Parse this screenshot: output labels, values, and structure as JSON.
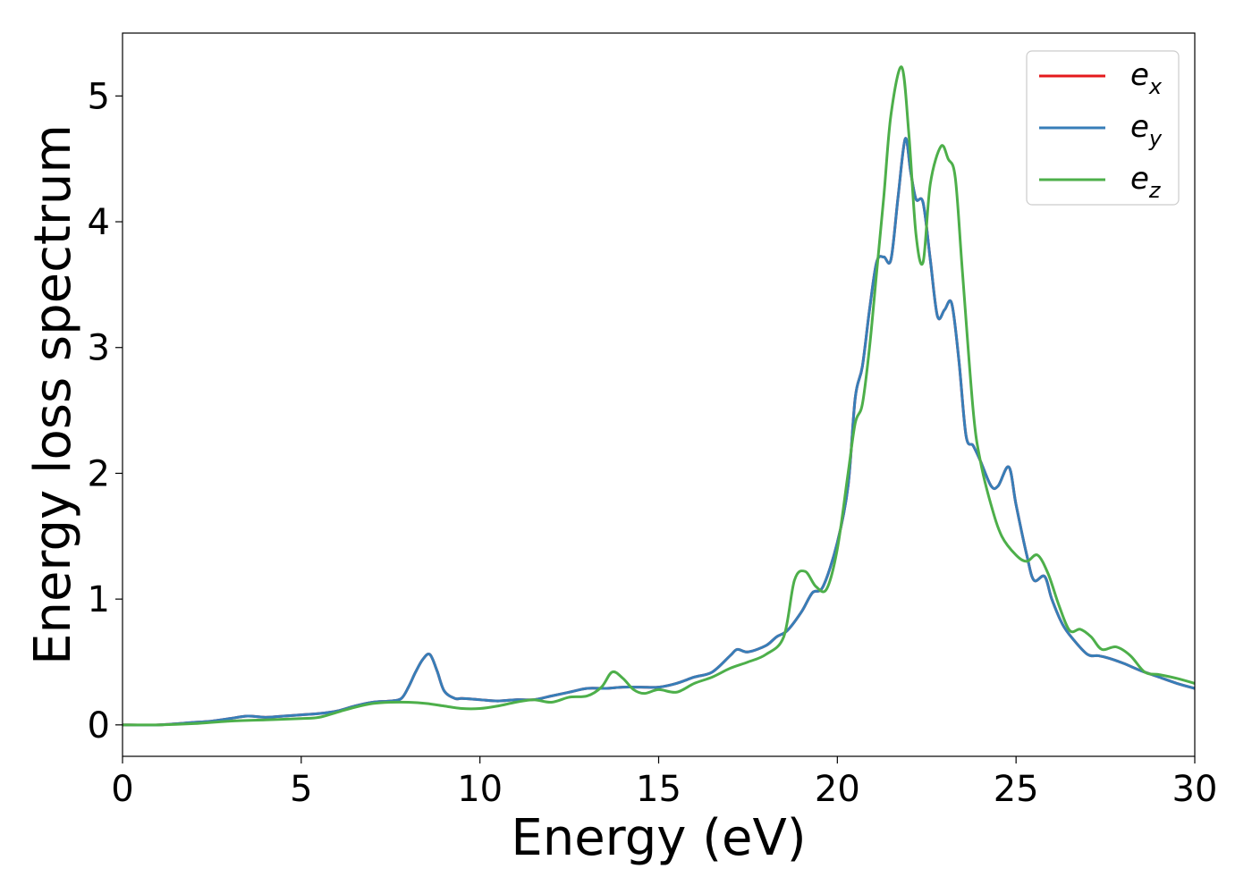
{
  "chart_data": {
    "type": "line",
    "xlabel": "Energy (eV)",
    "ylabel": "Energy loss spectrum",
    "xlim": [
      0,
      30
    ],
    "ylim": [
      -0.25,
      5.5
    ],
    "xticks": [
      0,
      5,
      10,
      15,
      20,
      25,
      30
    ],
    "yticks": [
      0,
      1,
      2,
      3,
      4,
      5
    ],
    "xtick_labels": [
      "0",
      "5",
      "10",
      "15",
      "20",
      "25",
      "30"
    ],
    "ytick_labels": [
      "0",
      "1",
      "2",
      "3",
      "4",
      "5"
    ],
    "grid": false,
    "legend_position": "top-right",
    "series": [
      {
        "name": "e_x",
        "label_base": "e",
        "label_sub": "x",
        "color": "#e41a1c",
        "x": [
          0,
          1,
          2,
          2.5,
          3,
          3.5,
          4,
          4.5,
          5,
          5.5,
          6,
          6.5,
          7,
          7.5,
          7.8,
          8,
          8.2,
          8.4,
          8.6,
          8.8,
          9,
          9.3,
          9.5,
          10,
          10.5,
          11,
          11.5,
          12,
          12.5,
          13,
          13.5,
          14,
          14.5,
          15,
          15.5,
          16,
          16.5,
          17,
          17.2,
          17.5,
          18,
          18.3,
          18.6,
          19,
          19.3,
          19.6,
          20,
          20.3,
          20.5,
          20.7,
          20.9,
          21.1,
          21.3,
          21.5,
          21.7,
          21.9,
          22.05,
          22.2,
          22.4,
          22.6,
          22.8,
          23,
          23.2,
          23.4,
          23.6,
          23.8,
          24,
          24.3,
          24.5,
          24.8,
          25,
          25.3,
          25.5,
          25.8,
          26,
          26.3,
          26.6,
          27,
          27.3,
          27.6,
          28,
          28.5,
          29,
          29.5,
          30
        ],
        "y": [
          0,
          0,
          0.02,
          0.03,
          0.05,
          0.07,
          0.06,
          0.07,
          0.08,
          0.09,
          0.11,
          0.15,
          0.18,
          0.19,
          0.21,
          0.3,
          0.42,
          0.52,
          0.56,
          0.43,
          0.27,
          0.21,
          0.21,
          0.2,
          0.19,
          0.2,
          0.2,
          0.23,
          0.26,
          0.29,
          0.29,
          0.3,
          0.3,
          0.3,
          0.33,
          0.38,
          0.42,
          0.55,
          0.6,
          0.58,
          0.63,
          0.7,
          0.75,
          0.9,
          1.05,
          1.1,
          1.45,
          1.9,
          2.6,
          2.85,
          3.3,
          3.68,
          3.72,
          3.7,
          4.2,
          4.66,
          4.4,
          4.18,
          4.15,
          3.7,
          3.25,
          3.3,
          3.35,
          2.9,
          2.3,
          2.22,
          2.1,
          1.9,
          1.9,
          2.05,
          1.75,
          1.35,
          1.15,
          1.18,
          1.0,
          0.8,
          0.68,
          0.56,
          0.55,
          0.53,
          0.49,
          0.43,
          0.38,
          0.33,
          0.29
        ]
      },
      {
        "name": "e_y",
        "label_base": "e",
        "label_sub": "y",
        "color": "#377eb8",
        "x": [
          0,
          1,
          2,
          2.5,
          3,
          3.5,
          4,
          4.5,
          5,
          5.5,
          6,
          6.5,
          7,
          7.5,
          7.8,
          8,
          8.2,
          8.4,
          8.6,
          8.8,
          9,
          9.3,
          9.5,
          10,
          10.5,
          11,
          11.5,
          12,
          12.5,
          13,
          13.5,
          14,
          14.5,
          15,
          15.5,
          16,
          16.5,
          17,
          17.2,
          17.5,
          18,
          18.3,
          18.6,
          19,
          19.3,
          19.6,
          20,
          20.3,
          20.5,
          20.7,
          20.9,
          21.1,
          21.3,
          21.5,
          21.7,
          21.9,
          22.05,
          22.2,
          22.4,
          22.6,
          22.8,
          23,
          23.2,
          23.4,
          23.6,
          23.8,
          24,
          24.3,
          24.5,
          24.8,
          25,
          25.3,
          25.5,
          25.8,
          26,
          26.3,
          26.6,
          27,
          27.3,
          27.6,
          28,
          28.5,
          29,
          29.5,
          30
        ],
        "y": [
          0,
          0,
          0.02,
          0.03,
          0.05,
          0.07,
          0.06,
          0.07,
          0.08,
          0.09,
          0.11,
          0.15,
          0.18,
          0.19,
          0.21,
          0.3,
          0.42,
          0.52,
          0.56,
          0.43,
          0.27,
          0.21,
          0.21,
          0.2,
          0.19,
          0.2,
          0.2,
          0.23,
          0.26,
          0.29,
          0.29,
          0.3,
          0.3,
          0.3,
          0.33,
          0.38,
          0.42,
          0.55,
          0.6,
          0.58,
          0.63,
          0.7,
          0.75,
          0.9,
          1.05,
          1.1,
          1.45,
          1.9,
          2.6,
          2.85,
          3.3,
          3.68,
          3.72,
          3.7,
          4.2,
          4.66,
          4.4,
          4.18,
          4.15,
          3.7,
          3.25,
          3.3,
          3.35,
          2.9,
          2.3,
          2.22,
          2.1,
          1.9,
          1.9,
          2.05,
          1.75,
          1.35,
          1.15,
          1.18,
          1.0,
          0.8,
          0.68,
          0.56,
          0.55,
          0.53,
          0.49,
          0.43,
          0.38,
          0.33,
          0.29
        ]
      },
      {
        "name": "e_z",
        "label_base": "e",
        "label_sub": "z",
        "color": "#4daf4a",
        "x": [
          0,
          1,
          2,
          3,
          4,
          5,
          5.5,
          6,
          6.5,
          7,
          7.5,
          8,
          8.5,
          9,
          9.5,
          10,
          10.5,
          11,
          11.5,
          12,
          12.5,
          13,
          13.4,
          13.7,
          14,
          14.3,
          14.6,
          15,
          15.5,
          16,
          16.5,
          17,
          17.5,
          18,
          18.5,
          18.8,
          19.1,
          19.4,
          19.7,
          20,
          20.3,
          20.5,
          20.7,
          20.9,
          21.1,
          21.3,
          21.5,
          21.8,
          22,
          22.2,
          22.4,
          22.6,
          22.9,
          23.1,
          23.3,
          23.5,
          23.8,
          24,
          24.3,
          24.6,
          25,
          25.3,
          25.6,
          25.9,
          26.2,
          26.5,
          26.8,
          27.1,
          27.4,
          27.8,
          28.2,
          28.6,
          29,
          29.5,
          30
        ],
        "y": [
          0,
          0,
          0.01,
          0.03,
          0.04,
          0.05,
          0.06,
          0.1,
          0.14,
          0.17,
          0.18,
          0.18,
          0.17,
          0.15,
          0.13,
          0.13,
          0.15,
          0.18,
          0.2,
          0.18,
          0.22,
          0.23,
          0.3,
          0.42,
          0.37,
          0.28,
          0.25,
          0.28,
          0.26,
          0.33,
          0.38,
          0.45,
          0.5,
          0.56,
          0.7,
          1.15,
          1.22,
          1.1,
          1.08,
          1.4,
          2.0,
          2.4,
          2.55,
          3.0,
          3.6,
          4.2,
          4.85,
          5.23,
          4.7,
          3.9,
          3.68,
          4.3,
          4.6,
          4.5,
          4.35,
          3.6,
          2.5,
          2.1,
          1.75,
          1.5,
          1.35,
          1.3,
          1.35,
          1.2,
          0.95,
          0.75,
          0.76,
          0.7,
          0.6,
          0.62,
          0.55,
          0.42,
          0.4,
          0.37,
          0.33
        ]
      }
    ]
  }
}
